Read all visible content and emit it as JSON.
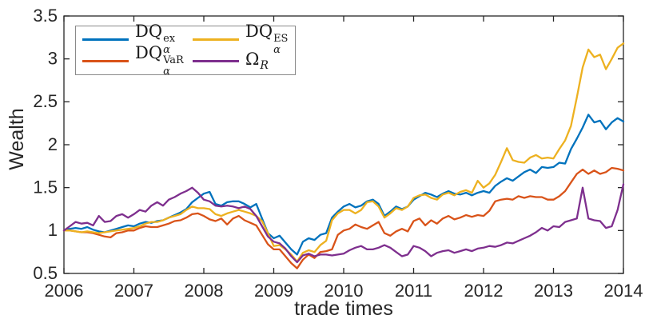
{
  "chart_data": {
    "type": "line",
    "title": "",
    "xlabel": "trade times",
    "ylabel": "Wealth",
    "xlim": [
      2006,
      2014
    ],
    "ylim": [
      0.5,
      3.5
    ],
    "grid": false,
    "legend_position": "top-left",
    "legend_columns": 2,
    "axis_color": "#262626",
    "x_ticks": [
      2006,
      2007,
      2008,
      2009,
      2010,
      2011,
      2012,
      2013,
      2014
    ],
    "x_tick_labels": [
      "2006",
      "2007",
      "2008",
      "2009",
      "2010",
      "2011",
      "2012",
      "2013",
      "2014"
    ],
    "y_ticks": [
      0.5,
      1,
      1.5,
      2,
      2.5,
      3,
      3.5
    ],
    "y_tick_labels": [
      "0.5",
      "1",
      "1.5",
      "2",
      "2.5",
      "3",
      "3.5"
    ],
    "x_start": 2006,
    "x_step": 0.0833333,
    "n_points": 97,
    "x_description": "monthly trade times from 2006.0 to 2014.0",
    "series": [
      {
        "name": "dq-ex",
        "label": {
          "base": "DQ",
          "sub": "α",
          "sup": "ex"
        },
        "label_text": "DQ_alpha^ex",
        "color": "#0072BD",
        "values": [
          1.0,
          1.02,
          1.03,
          1.02,
          1.04,
          1.01,
          0.99,
          0.98,
          1.0,
          1.02,
          1.04,
          1.06,
          1.05,
          1.08,
          1.1,
          1.09,
          1.11,
          1.12,
          1.15,
          1.18,
          1.21,
          1.25,
          1.33,
          1.38,
          1.43,
          1.45,
          1.31,
          1.29,
          1.33,
          1.34,
          1.34,
          1.31,
          1.27,
          1.31,
          1.14,
          0.97,
          0.91,
          0.94,
          0.86,
          0.78,
          0.72,
          0.87,
          0.91,
          0.89,
          0.95,
          0.97,
          1.15,
          1.22,
          1.28,
          1.31,
          1.27,
          1.29,
          1.34,
          1.36,
          1.31,
          1.17,
          1.22,
          1.28,
          1.25,
          1.28,
          1.36,
          1.4,
          1.44,
          1.42,
          1.39,
          1.43,
          1.46,
          1.43,
          1.42,
          1.44,
          1.41,
          1.44,
          1.46,
          1.44,
          1.52,
          1.57,
          1.61,
          1.58,
          1.63,
          1.68,
          1.71,
          1.67,
          1.74,
          1.73,
          1.74,
          1.79,
          1.78,
          1.95,
          2.07,
          2.2,
          2.35,
          2.26,
          2.28,
          2.18,
          2.26,
          2.31,
          2.27
        ]
      },
      {
        "name": "dq-var",
        "label": {
          "base": "DQ",
          "sub": "α",
          "sup": "VaR"
        },
        "label_text": "DQ_alpha^VaR",
        "color": "#D95319",
        "values": [
          1.0,
          1.0,
          0.99,
          0.98,
          0.98,
          0.97,
          0.95,
          0.93,
          0.92,
          0.97,
          0.98,
          1.0,
          1.0,
          1.03,
          1.05,
          1.04,
          1.04,
          1.06,
          1.08,
          1.11,
          1.12,
          1.15,
          1.19,
          1.2,
          1.17,
          1.13,
          1.11,
          1.14,
          1.07,
          1.14,
          1.17,
          1.12,
          1.09,
          1.06,
          0.95,
          0.84,
          0.78,
          0.78,
          0.7,
          0.62,
          0.56,
          0.66,
          0.72,
          0.68,
          0.75,
          0.76,
          0.78,
          0.95,
          1.0,
          1.02,
          1.07,
          1.04,
          1.02,
          1.06,
          1.1,
          0.97,
          0.94,
          0.99,
          1.02,
          0.99,
          1.11,
          1.14,
          1.06,
          1.12,
          1.08,
          1.14,
          1.17,
          1.13,
          1.15,
          1.18,
          1.16,
          1.18,
          1.17,
          1.23,
          1.34,
          1.36,
          1.37,
          1.36,
          1.4,
          1.38,
          1.4,
          1.39,
          1.39,
          1.36,
          1.36,
          1.4,
          1.46,
          1.56,
          1.66,
          1.71,
          1.66,
          1.7,
          1.66,
          1.68,
          1.73,
          1.72,
          1.7
        ]
      },
      {
        "name": "dq-es",
        "label": {
          "base": "DQ",
          "sub": "α",
          "sup": "ES"
        },
        "label_text": "DQ_alpha^ES",
        "color": "#EDB120",
        "values": [
          1.0,
          1.0,
          0.99,
          0.98,
          0.99,
          0.98,
          0.97,
          0.98,
          0.99,
          1.0,
          1.01,
          1.02,
          1.03,
          1.05,
          1.08,
          1.1,
          1.1,
          1.12,
          1.15,
          1.17,
          1.19,
          1.24,
          1.28,
          1.26,
          1.26,
          1.25,
          1.19,
          1.17,
          1.2,
          1.22,
          1.24,
          1.22,
          1.2,
          1.17,
          1.11,
          0.97,
          0.82,
          0.83,
          0.78,
          0.72,
          0.64,
          0.74,
          0.77,
          0.75,
          0.83,
          0.88,
          1.12,
          1.2,
          1.24,
          1.24,
          1.2,
          1.24,
          1.33,
          1.34,
          1.28,
          1.15,
          1.2,
          1.26,
          1.24,
          1.28,
          1.38,
          1.41,
          1.42,
          1.38,
          1.36,
          1.42,
          1.44,
          1.41,
          1.45,
          1.47,
          1.44,
          1.58,
          1.5,
          1.55,
          1.65,
          1.8,
          1.96,
          1.82,
          1.8,
          1.79,
          1.85,
          1.88,
          1.84,
          1.85,
          1.84,
          1.95,
          2.05,
          2.22,
          2.55,
          2.9,
          3.11,
          3.02,
          3.05,
          2.88,
          3.0,
          3.13,
          3.18
        ]
      },
      {
        "name": "omega-r",
        "label": {
          "base": "Ω",
          "sub": "R",
          "sup": ""
        },
        "label_text": "Omega_R",
        "color": "#7E2F8E",
        "values": [
          1.0,
          1.05,
          1.1,
          1.08,
          1.09,
          1.06,
          1.17,
          1.1,
          1.11,
          1.17,
          1.19,
          1.15,
          1.19,
          1.24,
          1.22,
          1.29,
          1.33,
          1.29,
          1.36,
          1.39,
          1.43,
          1.46,
          1.5,
          1.44,
          1.36,
          1.34,
          1.29,
          1.28,
          1.29,
          1.28,
          1.26,
          1.28,
          1.25,
          1.17,
          1.05,
          0.93,
          0.87,
          0.85,
          0.79,
          0.7,
          0.63,
          0.71,
          0.73,
          0.7,
          0.72,
          0.72,
          0.71,
          0.72,
          0.73,
          0.77,
          0.8,
          0.82,
          0.78,
          0.78,
          0.8,
          0.83,
          0.8,
          0.75,
          0.7,
          0.72,
          0.82,
          0.8,
          0.76,
          0.7,
          0.74,
          0.76,
          0.77,
          0.74,
          0.76,
          0.78,
          0.76,
          0.79,
          0.8,
          0.82,
          0.81,
          0.83,
          0.86,
          0.85,
          0.88,
          0.91,
          0.94,
          0.98,
          1.03,
          1.0,
          1.05,
          1.04,
          1.1,
          1.12,
          1.14,
          1.5,
          1.14,
          1.12,
          1.11,
          1.03,
          1.05,
          1.24,
          1.54
        ]
      }
    ]
  }
}
